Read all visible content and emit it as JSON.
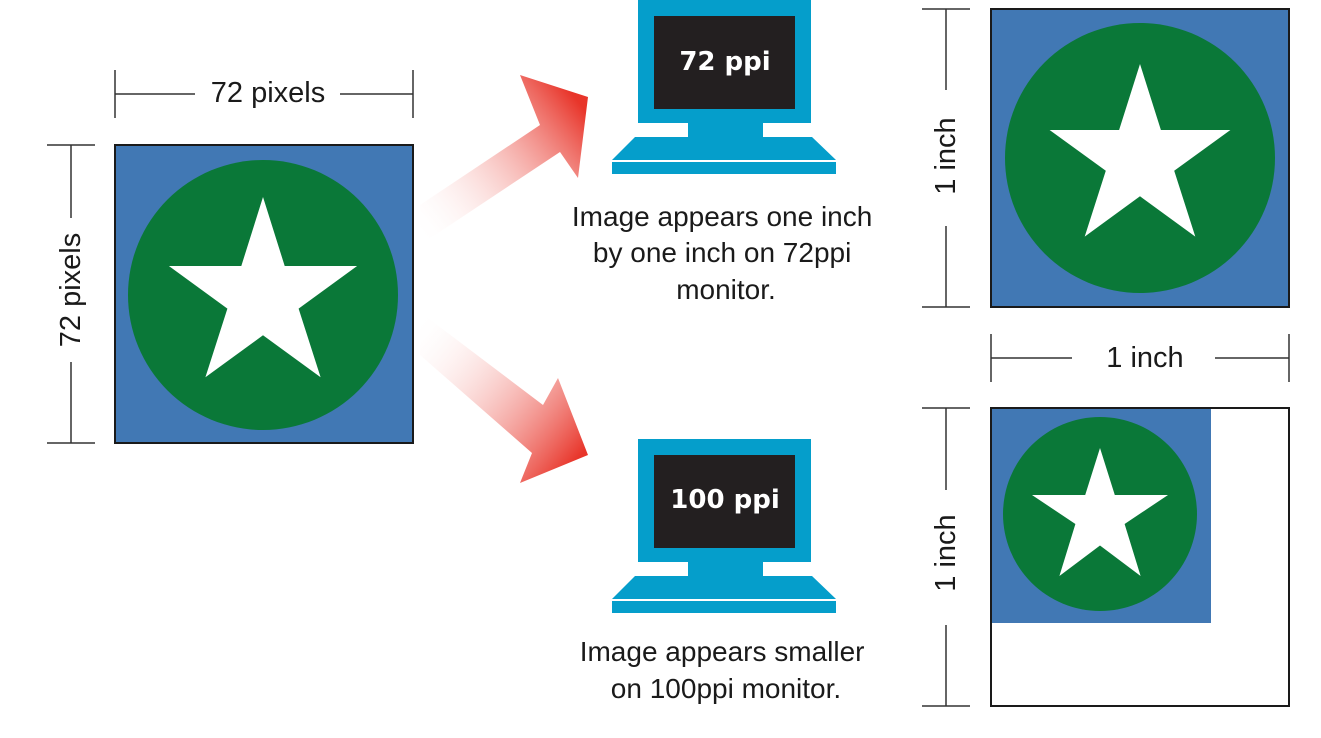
{
  "source": {
    "width_label": "72 pixels",
    "height_label": "72 pixels"
  },
  "monitors": [
    {
      "screen_label": "72 ppi",
      "caption_lines": [
        "Image appears one inch",
        "by one inch on 72ppi",
        "monitor."
      ]
    },
    {
      "screen_label": "100 ppi",
      "caption_lines": [
        "Image appears smaller",
        "on 100ppi monitor."
      ]
    }
  ],
  "results": {
    "top_height_label": "1 inch",
    "width_label": "1 inch",
    "bottom_height_label": "1 inch"
  },
  "colors": {
    "image_bg": "#4178b4",
    "circle": "#0a7838",
    "star": "#ffffff",
    "monitor": "#059ecb",
    "screen": "#231f20",
    "arrow": "#e8352a",
    "dimension_line": "#333333"
  }
}
